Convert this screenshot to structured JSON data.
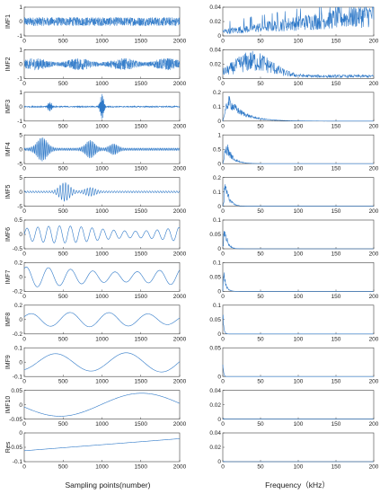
{
  "figure": {
    "left_xlabel": "Sampling points(number)",
    "right_xlabel": "Frequency（kHz）"
  },
  "chart_data": [
    {
      "type": "line",
      "panel": "time",
      "ylabel": "IMF1",
      "x_ticks": [
        "0",
        "500",
        "1000",
        "1500",
        "2000"
      ],
      "xlim": [
        0,
        2000
      ],
      "y_ticks": [
        "1",
        "0",
        "-1"
      ],
      "ylim": [
        -1,
        1
      ],
      "series": [
        {
          "values_description": "dense high-frequency noise, amplitude ~0.3"
        }
      ]
    },
    {
      "type": "line",
      "panel": "spectrum",
      "x_ticks": [
        "0",
        "50",
        "100",
        "150",
        "200"
      ],
      "xlim": [
        0,
        200
      ],
      "y_ticks": [
        "0.04",
        "0.02",
        "0"
      ],
      "ylim": [
        0,
        0.04
      ],
      "series": [
        {
          "shape": "broadband, rising from ~0.005 to ~0.035"
        }
      ]
    },
    {
      "type": "line",
      "panel": "time",
      "ylabel": "IMF2",
      "x_ticks": [
        "0",
        "500",
        "1000",
        "1500",
        "2000"
      ],
      "xlim": [
        0,
        2000
      ],
      "y_ticks": [
        "1",
        "0",
        "-1"
      ],
      "ylim": [
        -1,
        1
      ],
      "series": [
        {
          "values_description": "dense noise, amplitude ~0.4"
        }
      ]
    },
    {
      "type": "line",
      "panel": "spectrum",
      "x_ticks": [
        "0",
        "50",
        "100",
        "150",
        "200"
      ],
      "xlim": [
        0,
        200
      ],
      "y_ticks": [
        "0.04",
        "0.02",
        "0"
      ],
      "ylim": [
        0,
        0.04
      ],
      "series": [
        {
          "shape": "hump peaking ~0.025 near 40 kHz"
        }
      ]
    },
    {
      "type": "line",
      "panel": "time",
      "ylabel": "IMF3",
      "x_ticks": [
        "0",
        "500",
        "1000",
        "1500",
        "2000"
      ],
      "xlim": [
        0,
        2000
      ],
      "y_ticks": [
        "1",
        "0",
        "-1"
      ],
      "ylim": [
        -1,
        1
      ],
      "series": [
        {
          "values_description": "bursts near 300 and 1000, amplitude up to ~0.9"
        }
      ]
    },
    {
      "type": "line",
      "panel": "spectrum",
      "x_ticks": [
        "0",
        "50",
        "100",
        "150",
        "200"
      ],
      "xlim": [
        0,
        200
      ],
      "y_ticks": [
        "0.2",
        "0.1",
        "0"
      ],
      "ylim": [
        0,
        0.2
      ],
      "series": [
        {
          "shape": "peak ~0.15 near 12 kHz, decaying"
        }
      ]
    },
    {
      "type": "line",
      "panel": "time",
      "ylabel": "IMF4",
      "x_ticks": [
        "0",
        "500",
        "1000",
        "1500",
        "2000"
      ],
      "xlim": [
        0,
        2000
      ],
      "y_ticks": [
        "5",
        "0",
        "-5"
      ],
      "ylim": [
        -5,
        5
      ],
      "series": [
        {
          "values_description": "oscillation packets around 200, 800, 1100"
        }
      ]
    },
    {
      "type": "line",
      "panel": "spectrum",
      "x_ticks": [
        "0",
        "50",
        "100",
        "150",
        "200"
      ],
      "xlim": [
        0,
        200
      ],
      "y_ticks": [
        "1",
        "0.5",
        "0"
      ],
      "ylim": [
        0,
        1
      ],
      "series": [
        {
          "shape": "peak ~0.6 near 8 kHz"
        }
      ]
    },
    {
      "type": "line",
      "panel": "time",
      "ylabel": "IMF5",
      "x_ticks": [
        "0",
        "500",
        "1000",
        "1500",
        "2000"
      ],
      "xlim": [
        0,
        2000
      ],
      "y_ticks": [
        "5",
        "0",
        "-5"
      ],
      "ylim": [
        -5,
        5
      ],
      "series": [
        {
          "values_description": "packet near 500, amplitude ~3"
        }
      ]
    },
    {
      "type": "line",
      "panel": "spectrum",
      "x_ticks": [
        "0",
        "50",
        "100",
        "150",
        "200"
      ],
      "xlim": [
        0,
        200
      ],
      "y_ticks": [
        "0.2",
        "0.1",
        "0"
      ],
      "ylim": [
        0,
        0.2
      ],
      "series": [
        {
          "shape": "peak ~0.15 near 5 kHz"
        }
      ]
    },
    {
      "type": "line",
      "panel": "time",
      "ylabel": "IMF6",
      "x_ticks": [
        "0",
        "500",
        "1000",
        "1500",
        "2000"
      ],
      "xlim": [
        0,
        2000
      ],
      "y_ticks": [
        "0.5",
        "0",
        "-0.5"
      ],
      "ylim": [
        -0.5,
        0.5
      ],
      "series": [
        {
          "values_description": "smooth oscillation, amplitude ~0.3"
        }
      ]
    },
    {
      "type": "line",
      "panel": "spectrum",
      "x_ticks": [
        "0",
        "50",
        "100",
        "150",
        "200"
      ],
      "xlim": [
        0,
        200
      ],
      "y_ticks": [
        "0.1",
        "0.05",
        "0"
      ],
      "ylim": [
        0,
        0.1
      ],
      "series": [
        {
          "shape": "peak ~0.08 near 3 kHz"
        }
      ]
    },
    {
      "type": "line",
      "panel": "time",
      "ylabel": "IMF7",
      "x_ticks": [
        "0",
        "500",
        "1000",
        "1500",
        "2000"
      ],
      "xlim": [
        0,
        2000
      ],
      "y_ticks": [
        "0.2",
        "0",
        "-0.2"
      ],
      "ylim": [
        -0.2,
        0.2
      ],
      "series": [
        {
          "values_description": "slow oscillation, amplitude ~0.15"
        }
      ]
    },
    {
      "type": "line",
      "panel": "spectrum",
      "x_ticks": [
        "0",
        "50",
        "100",
        "150",
        "200"
      ],
      "xlim": [
        0,
        200
      ],
      "y_ticks": [
        "0.1",
        "0.05",
        "0"
      ],
      "ylim": [
        0,
        0.1
      ],
      "series": [
        {
          "shape": "peak ~0.07 near 2 kHz"
        }
      ]
    },
    {
      "type": "line",
      "panel": "time",
      "ylabel": "IMF8",
      "x_ticks": [
        "0",
        "500",
        "1000",
        "1500",
        "2000"
      ],
      "xlim": [
        0,
        2000
      ],
      "y_ticks": [
        "0.2",
        "0",
        "-0.2"
      ],
      "ylim": [
        -0.2,
        0.2
      ],
      "series": [
        {
          "values_description": "slow oscillation, amplitude ~0.1"
        }
      ]
    },
    {
      "type": "line",
      "panel": "spectrum",
      "x_ticks": [
        "0",
        "50",
        "100",
        "150",
        "200"
      ],
      "xlim": [
        0,
        200
      ],
      "y_ticks": [
        "0.1",
        "0.05",
        "0"
      ],
      "ylim": [
        0,
        0.1
      ],
      "series": [
        {
          "shape": "spike ~0.08 near 1 kHz"
        }
      ]
    },
    {
      "type": "line",
      "panel": "time",
      "ylabel": "IMF9",
      "x_ticks": [
        "0",
        "500",
        "1000",
        "1500",
        "2000"
      ],
      "xlim": [
        0,
        2000
      ],
      "y_ticks": [
        "0.1",
        "0",
        "-0.1"
      ],
      "ylim": [
        -0.1,
        0.1
      ],
      "series": [
        {
          "values_description": "two slow waves, amplitude ~0.07"
        }
      ]
    },
    {
      "type": "line",
      "panel": "spectrum",
      "x_ticks": [
        "0",
        "50",
        "100",
        "150",
        "200"
      ],
      "xlim": [
        0,
        200
      ],
      "y_ticks": [
        "0.05",
        "0"
      ],
      "ylim": [
        0,
        0.05
      ],
      "series": [
        {
          "shape": "near zero, small spike at 0"
        }
      ]
    },
    {
      "type": "line",
      "panel": "time",
      "ylabel": "IMF10",
      "x_ticks": [
        "0",
        "500",
        "1000",
        "1500",
        "2000"
      ],
      "xlim": [
        0,
        2000
      ],
      "y_ticks": [
        "0.05",
        "0",
        "-0.05"
      ],
      "ylim": [
        -0.05,
        0.05
      ],
      "series": [
        {
          "values_description": "single wave, min ~-0.04 near 1100"
        }
      ]
    },
    {
      "type": "line",
      "panel": "spectrum",
      "x_ticks": [
        "0",
        "50",
        "100",
        "150",
        "200"
      ],
      "xlim": [
        0,
        200
      ],
      "y_ticks": [
        "0.04",
        "0.02",
        "0"
      ],
      "ylim": [
        0,
        0.04
      ],
      "series": [
        {
          "shape": "flat near zero"
        }
      ]
    },
    {
      "type": "line",
      "panel": "time",
      "ylabel": "Res",
      "x_ticks": [
        "0",
        "500",
        "1000",
        "1500",
        "2000"
      ],
      "xlim": [
        0,
        2000
      ],
      "y_ticks": [
        "0",
        "-0.05",
        "-0.1"
      ],
      "ylim": [
        -0.1,
        0
      ],
      "series": [
        {
          "values": [
            [
              0,
              -0.062
            ],
            [
              2000,
              -0.02
            ]
          ]
        }
      ]
    },
    {
      "type": "line",
      "panel": "spectrum",
      "x_ticks": [
        "0",
        "50",
        "100",
        "150",
        "200"
      ],
      "xlim": [
        0,
        200
      ],
      "y_ticks": [
        "0.04",
        "0.02",
        "0"
      ],
      "ylim": [
        0,
        0.04
      ],
      "series": [
        {
          "shape": "flat near zero"
        }
      ]
    }
  ],
  "colors": {
    "line": "#2f79c8",
    "axis": "#404040"
  }
}
